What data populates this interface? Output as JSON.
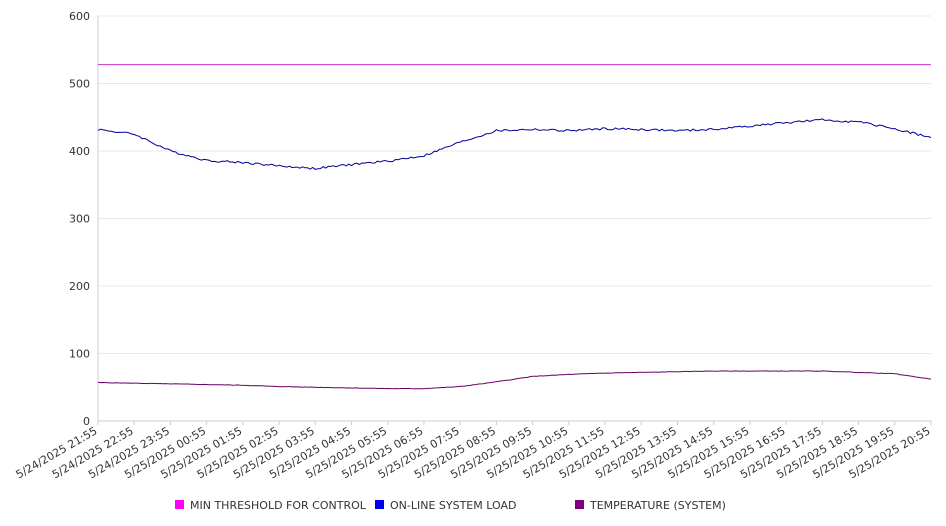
{
  "chart_data": {
    "type": "line",
    "title": "",
    "xlabel": "",
    "ylabel": "",
    "ylim": [
      0,
      600
    ],
    "yticks": [
      0,
      100,
      200,
      300,
      400,
      500,
      600
    ],
    "grid": "horizontal",
    "legend_position": "bottom",
    "x": [
      "5/24/2025 21:55",
      "5/24/2025 22:55",
      "5/24/2025 23:55",
      "5/25/2025 00:55",
      "5/25/2025 01:55",
      "5/25/2025 02:55",
      "5/25/2025 03:55",
      "5/25/2025 04:55",
      "5/25/2025 05:55",
      "5/25/2025 06:55",
      "5/25/2025 07:55",
      "5/25/2025 08:55",
      "5/25/2025 09:55",
      "5/25/2025 10:55",
      "5/25/2025 11:55",
      "5/25/2025 12:55",
      "5/25/2025 13:55",
      "5/25/2025 14:55",
      "5/25/2025 15:55",
      "5/25/2025 16:55",
      "5/25/2025 17:55",
      "5/25/2025 18:55",
      "5/25/2025 19:55",
      "5/25/2025 20:55"
    ],
    "series": [
      {
        "name": "MIN THRESHOLD FOR CONTROL",
        "color": "#cc33cc",
        "legend_color": "#ff00ff",
        "values": [
          528,
          528,
          528,
          528,
          528,
          528,
          528,
          528,
          528,
          528,
          528,
          528,
          528,
          528,
          528,
          528,
          528,
          528,
          528,
          528,
          528,
          528,
          528,
          528
        ]
      },
      {
        "name": "ON-LINE SYSTEM LOAD",
        "color": "#000099",
        "legend_color": "#0000ee",
        "values": [
          432,
          425,
          400,
          386,
          383,
          378,
          374,
          380,
          385,
          393,
          413,
          430,
          432,
          430,
          433,
          432,
          430,
          432,
          437,
          442,
          446,
          443,
          433,
          420
        ]
      },
      {
        "name": "TEMPERATURE (SYSTEM)",
        "color": "#660066",
        "legend_color": "#800080",
        "values": [
          57,
          56,
          55,
          54,
          53,
          51,
          50,
          49,
          48,
          48,
          51,
          58,
          66,
          69,
          71,
          72,
          73,
          74,
          74,
          74,
          74,
          72,
          70,
          62
        ]
      }
    ]
  }
}
